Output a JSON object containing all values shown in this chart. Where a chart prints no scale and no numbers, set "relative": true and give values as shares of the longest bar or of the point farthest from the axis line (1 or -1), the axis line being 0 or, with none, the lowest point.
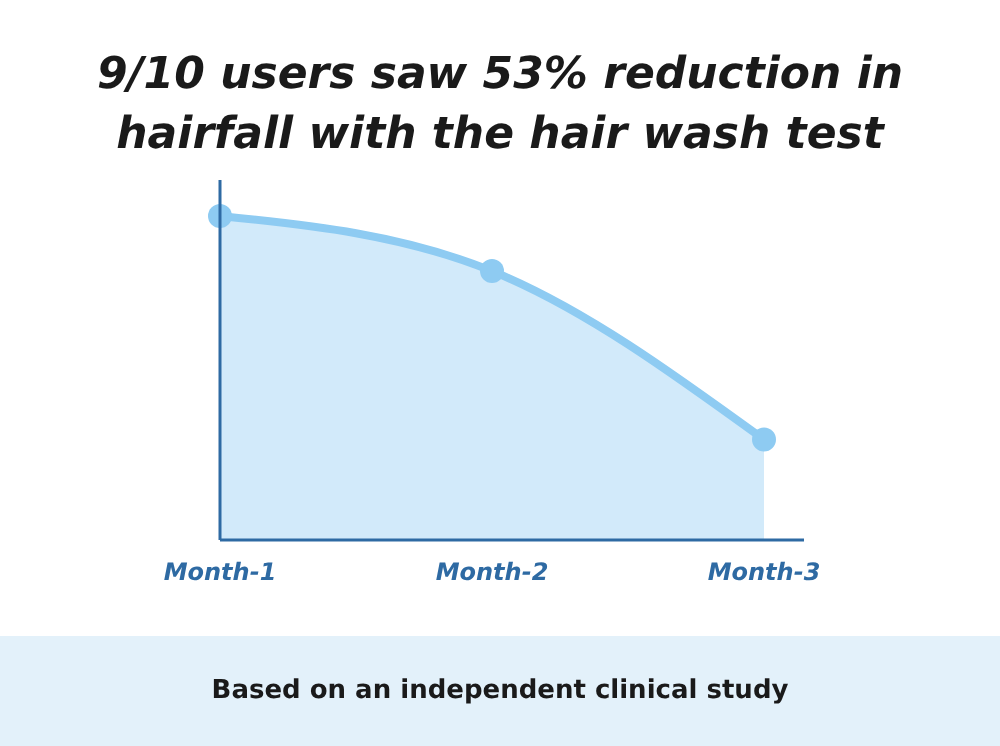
{
  "chart_data": {
    "type": "area",
    "title": "9/10 users saw 53% reduction in hairfall with the hair wash test",
    "relative": true,
    "categories": [
      "Month-1",
      "Month-2",
      "Month-3"
    ],
    "series": [
      {
        "color": "#8ecbf2",
        "values": [
          1,
          0.83,
          0.31
        ]
      }
    ],
    "marker": "circle",
    "annotations": [
      "Based on an independent clinical study"
    ]
  }
}
